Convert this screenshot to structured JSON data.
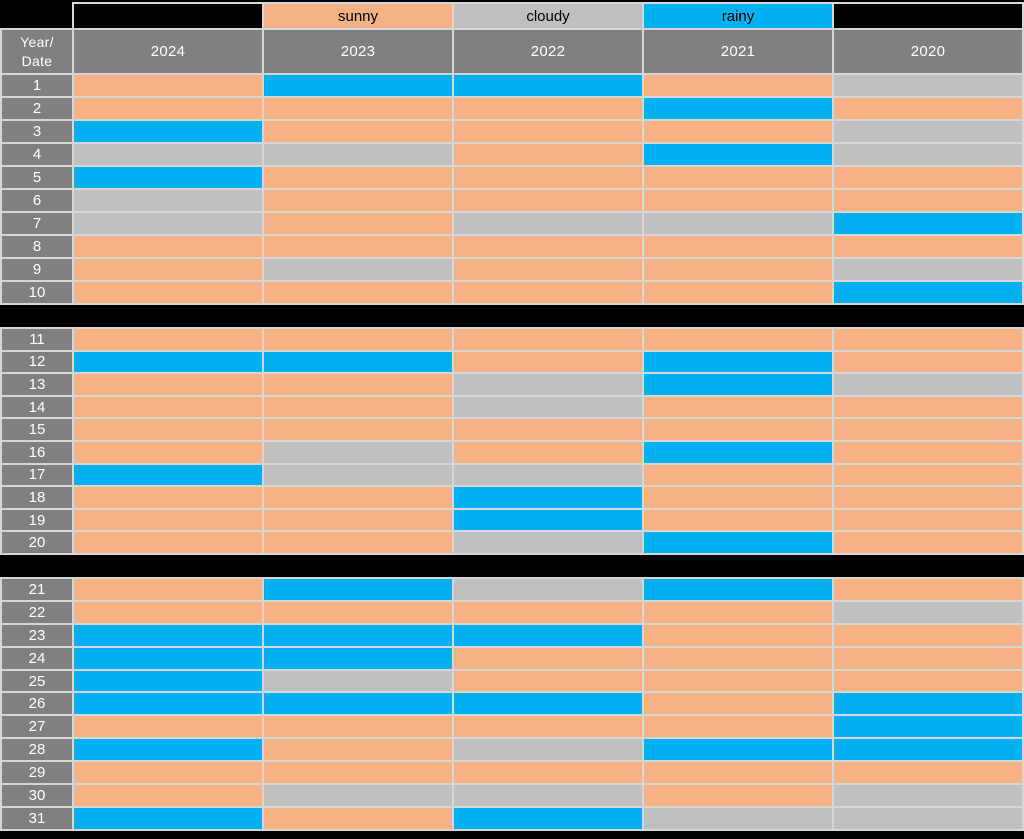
{
  "chart_data": {
    "type": "heatmap",
    "title": "",
    "corner_label": "Year/Date",
    "corner_label_lines": [
      "Year/",
      "Date"
    ],
    "columns": [
      "2024",
      "2023",
      "2022",
      "2021",
      "2020"
    ],
    "legend": {
      "position": "top",
      "items": [
        {
          "key": "sunny",
          "label": "sunny",
          "color": "#F4B183"
        },
        {
          "key": "cloudy",
          "label": "cloudy",
          "color": "#BFBFBF"
        },
        {
          "key": "rainy",
          "label": "rainy",
          "color": "#00B0F0"
        }
      ]
    },
    "styles": {
      "sunny_color": "#F4B183",
      "cloudy_color": "#BFBFBF",
      "rainy_color": "#00B0F0",
      "header_bg": "#808080",
      "header_text": "#FFFFFF",
      "legend_text": "#000000",
      "gridline": "#D6D6D6",
      "page_bg": "#000000"
    },
    "sections": [
      {
        "rows": [
          {
            "date": "1",
            "values": [
              "sunny",
              "rainy",
              "rainy",
              "sunny",
              "cloudy"
            ]
          },
          {
            "date": "2",
            "values": [
              "sunny",
              "sunny",
              "sunny",
              "rainy",
              "sunny"
            ]
          },
          {
            "date": "3",
            "values": [
              "rainy",
              "sunny",
              "sunny",
              "sunny",
              "cloudy"
            ]
          },
          {
            "date": "4",
            "values": [
              "cloudy",
              "cloudy",
              "sunny",
              "rainy",
              "cloudy"
            ]
          },
          {
            "date": "5",
            "values": [
              "rainy",
              "sunny",
              "sunny",
              "sunny",
              "sunny"
            ]
          },
          {
            "date": "6",
            "values": [
              "cloudy",
              "sunny",
              "sunny",
              "sunny",
              "sunny"
            ]
          },
          {
            "date": "7",
            "values": [
              "cloudy",
              "sunny",
              "cloudy",
              "cloudy",
              "rainy"
            ]
          },
          {
            "date": "8",
            "values": [
              "sunny",
              "sunny",
              "sunny",
              "sunny",
              "sunny"
            ]
          },
          {
            "date": "9",
            "values": [
              "sunny",
              "cloudy",
              "sunny",
              "sunny",
              "cloudy"
            ]
          },
          {
            "date": "10",
            "values": [
              "sunny",
              "sunny",
              "sunny",
              "sunny",
              "rainy"
            ]
          }
        ]
      },
      {
        "rows": [
          {
            "date": "11",
            "values": [
              "sunny",
              "sunny",
              "sunny",
              "sunny",
              "sunny"
            ]
          },
          {
            "date": "12",
            "values": [
              "rainy",
              "rainy",
              "sunny",
              "rainy",
              "sunny"
            ]
          },
          {
            "date": "13",
            "values": [
              "sunny",
              "sunny",
              "cloudy",
              "rainy",
              "cloudy"
            ]
          },
          {
            "date": "14",
            "values": [
              "sunny",
              "sunny",
              "cloudy",
              "sunny",
              "sunny"
            ]
          },
          {
            "date": "15",
            "values": [
              "sunny",
              "sunny",
              "sunny",
              "sunny",
              "sunny"
            ]
          },
          {
            "date": "16",
            "values": [
              "sunny",
              "cloudy",
              "sunny",
              "rainy",
              "sunny"
            ]
          },
          {
            "date": "17",
            "values": [
              "rainy",
              "cloudy",
              "cloudy",
              "sunny",
              "sunny"
            ]
          },
          {
            "date": "18",
            "values": [
              "sunny",
              "sunny",
              "rainy",
              "sunny",
              "sunny"
            ]
          },
          {
            "date": "19",
            "values": [
              "sunny",
              "sunny",
              "rainy",
              "sunny",
              "sunny"
            ]
          },
          {
            "date": "20",
            "values": [
              "sunny",
              "sunny",
              "cloudy",
              "rainy",
              "sunny"
            ]
          }
        ]
      },
      {
        "rows": [
          {
            "date": "21",
            "values": [
              "sunny",
              "rainy",
              "cloudy",
              "rainy",
              "sunny"
            ]
          },
          {
            "date": "22",
            "values": [
              "sunny",
              "sunny",
              "sunny",
              "sunny",
              "cloudy"
            ]
          },
          {
            "date": "23",
            "values": [
              "rainy",
              "rainy",
              "rainy",
              "sunny",
              "sunny"
            ]
          },
          {
            "date": "24",
            "values": [
              "rainy",
              "rainy",
              "sunny",
              "sunny",
              "sunny"
            ]
          },
          {
            "date": "25",
            "values": [
              "rainy",
              "cloudy",
              "sunny",
              "sunny",
              "sunny"
            ]
          },
          {
            "date": "26",
            "values": [
              "rainy",
              "rainy",
              "rainy",
              "sunny",
              "rainy"
            ]
          },
          {
            "date": "27",
            "values": [
              "sunny",
              "sunny",
              "sunny",
              "sunny",
              "rainy"
            ]
          },
          {
            "date": "28",
            "values": [
              "rainy",
              "sunny",
              "cloudy",
              "rainy",
              "rainy"
            ]
          },
          {
            "date": "29",
            "values": [
              "sunny",
              "sunny",
              "sunny",
              "sunny",
              "sunny"
            ]
          },
          {
            "date": "30",
            "values": [
              "sunny",
              "cloudy",
              "cloudy",
              "sunny",
              "cloudy"
            ]
          },
          {
            "date": "31",
            "values": [
              "rainy",
              "sunny",
              "rainy",
              "cloudy",
              "cloudy"
            ]
          }
        ]
      }
    ]
  }
}
